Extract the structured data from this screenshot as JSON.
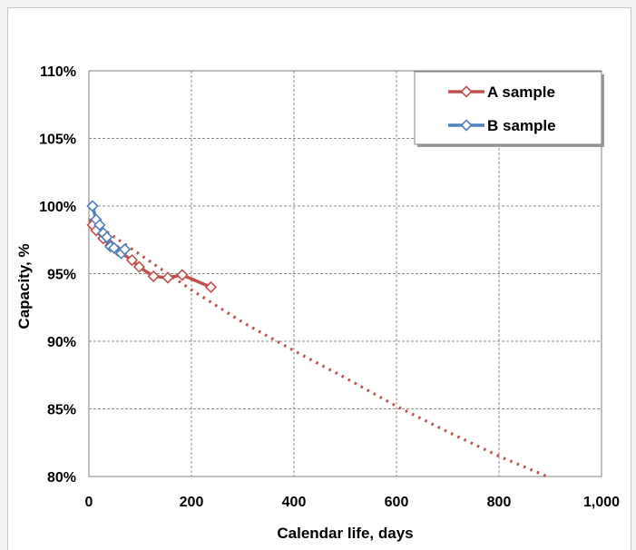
{
  "chart_data": {
    "type": "line",
    "title": "",
    "xlabel": "Calendar life, days",
    "ylabel": "Capacity, %",
    "xlim": [
      0,
      1000
    ],
    "ylim": [
      80,
      110
    ],
    "x_ticks": [
      0,
      200,
      400,
      600,
      800,
      1000
    ],
    "x_tick_labels": [
      "0",
      "200",
      "400",
      "600",
      "800",
      "1,000"
    ],
    "y_ticks": [
      80,
      85,
      90,
      95,
      100,
      105,
      110
    ],
    "y_tick_labels": [
      "80%",
      "85%",
      "90%",
      "95%",
      "100%",
      "105%",
      "110%"
    ],
    "grid": true,
    "legend_position": "top-right",
    "series": [
      {
        "name": "A sample",
        "color": "#c0504d",
        "marker": "diamond",
        "x": [
          7,
          14,
          28,
          42,
          56,
          84,
          98,
          126,
          154,
          182,
          238
        ],
        "y": [
          98.6,
          98.2,
          97.6,
          97.1,
          96.7,
          96.0,
          95.5,
          94.8,
          94.7,
          94.9,
          94.0
        ]
      },
      {
        "name": "B sample",
        "color": "#4f81bd",
        "marker": "diamond",
        "x": [
          7,
          14,
          21,
          28,
          35,
          42,
          49,
          63,
          70
        ],
        "y": [
          100.0,
          99.0,
          98.6,
          98.0,
          97.7,
          97.0,
          96.9,
          96.5,
          96.8
        ]
      }
    ],
    "trendline": {
      "style": "dotted",
      "color": "#c0504d",
      "x": [
        0,
        100,
        200,
        300,
        400,
        500,
        600,
        700,
        800,
        900
      ],
      "y": [
        99.0,
        96.4,
        93.8,
        91.4,
        89.3,
        87.3,
        85.2,
        83.3,
        81.5,
        79.9
      ]
    }
  }
}
